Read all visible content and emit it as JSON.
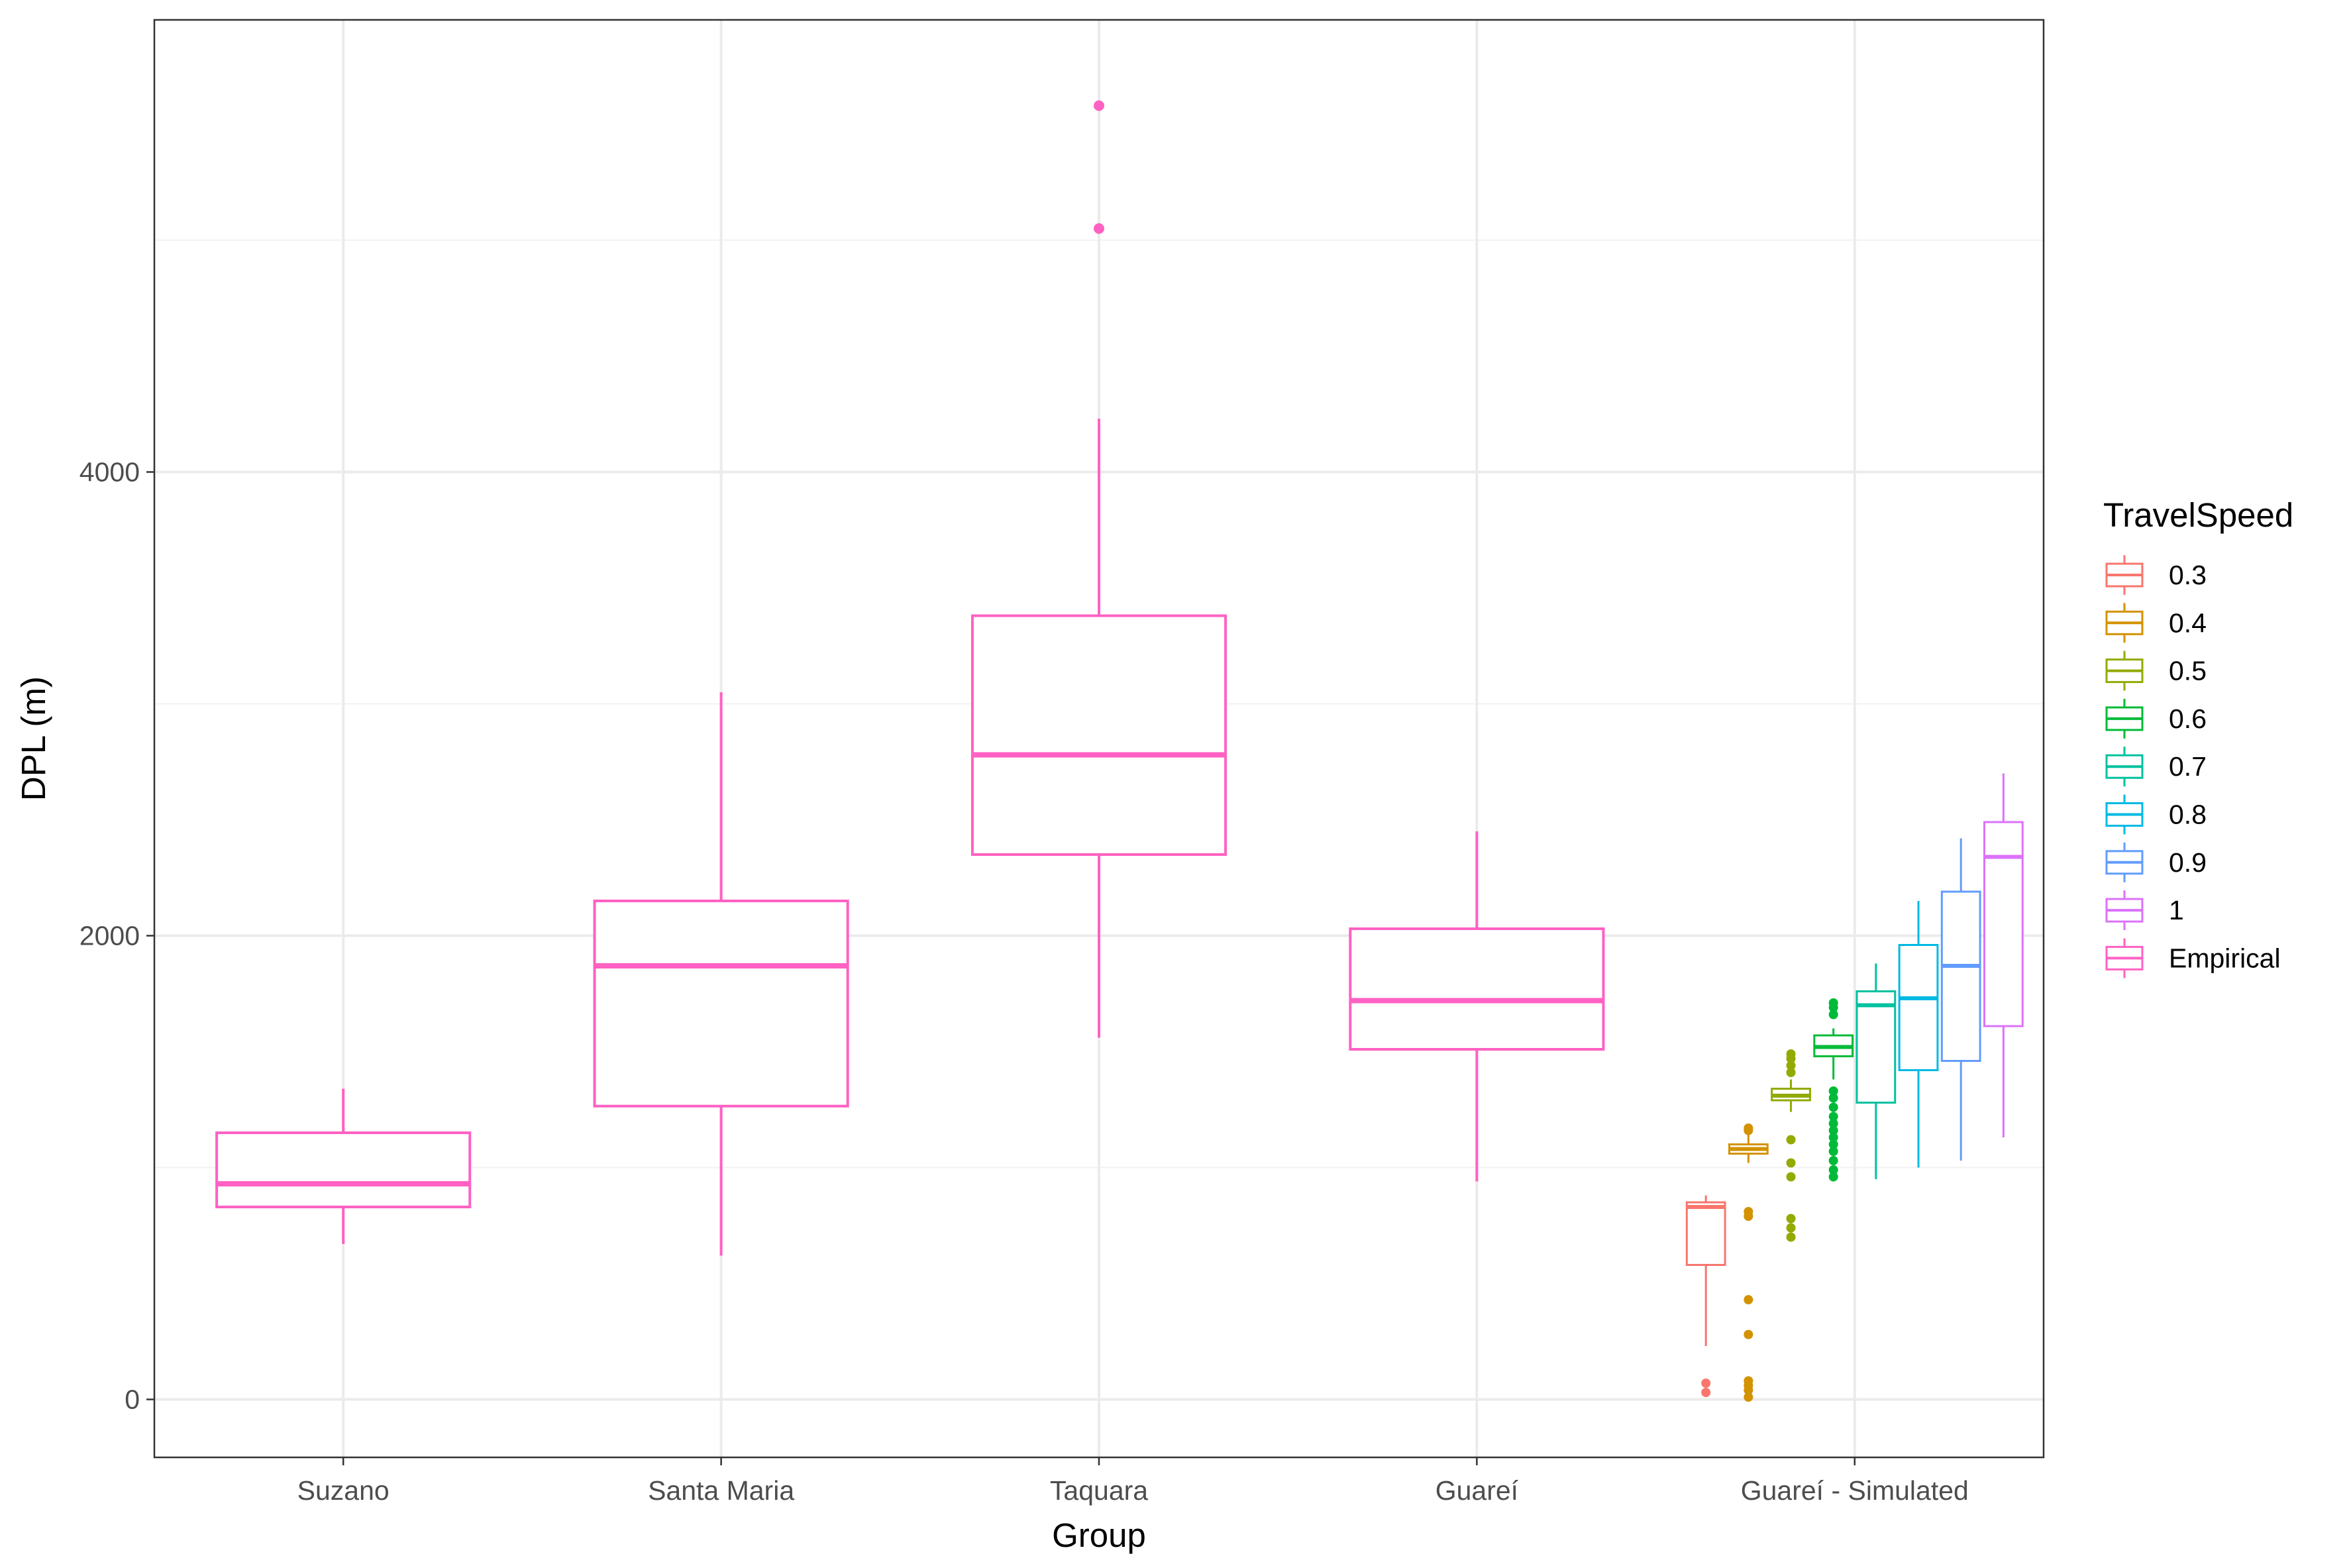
{
  "chart_data": {
    "type": "boxplot",
    "xlabel": "Group",
    "ylabel": "DPL (m)",
    "ylim": [
      -250,
      5950
    ],
    "y_major_ticks": [
      0,
      2000,
      4000
    ],
    "y_minor_gridlines": [
      1000,
      3000,
      5000
    ],
    "grid": true,
    "categories": [
      "Suzano",
      "Santa Maria",
      "Taquara",
      "Guareí",
      "Guareí - Simulated"
    ],
    "legend": {
      "title": "TravelSpeed",
      "position": "right",
      "entries": [
        {
          "label": "0.3",
          "color": "#F8766D"
        },
        {
          "label": "0.4",
          "color": "#D39200"
        },
        {
          "label": "0.5",
          "color": "#93AA00"
        },
        {
          "label": "0.6",
          "color": "#00BA38"
        },
        {
          "label": "0.7",
          "color": "#00C19F"
        },
        {
          "label": "0.8",
          "color": "#00B9E3"
        },
        {
          "label": "0.9",
          "color": "#619CFF"
        },
        {
          "label": "1",
          "color": "#DB72FB"
        },
        {
          "label": "Empirical",
          "color": "#FF61C3"
        }
      ]
    },
    "boxes": [
      {
        "category": "Suzano",
        "series": "Empirical",
        "min": 670,
        "q1": 830,
        "median": 930,
        "q3": 1150,
        "max": 1340,
        "outliers": []
      },
      {
        "category": "Santa Maria",
        "series": "Empirical",
        "min": 620,
        "q1": 1265,
        "median": 1870,
        "q3": 2150,
        "max": 3050,
        "outliers": []
      },
      {
        "category": "Taquara",
        "series": "Empirical",
        "min": 1560,
        "q1": 2350,
        "median": 2780,
        "q3": 3380,
        "max": 4230,
        "outliers": [
          5050,
          5580
        ]
      },
      {
        "category": "Guareí",
        "series": "Empirical",
        "min": 940,
        "q1": 1510,
        "median": 1720,
        "q3": 2030,
        "max": 2450,
        "outliers": []
      },
      {
        "category": "Guareí - Simulated",
        "series": "0.3",
        "min": 230,
        "q1": 580,
        "median": 830,
        "q3": 850,
        "max": 880,
        "outliers": [
          30,
          70
        ]
      },
      {
        "category": "Guareí - Simulated",
        "series": "0.4",
        "min": 1020,
        "q1": 1060,
        "median": 1080,
        "q3": 1100,
        "max": 1150,
        "outliers": [
          10,
          40,
          60,
          80,
          280,
          430,
          790,
          810,
          1160,
          1170
        ]
      },
      {
        "category": "Guareí - Simulated",
        "series": "0.5",
        "min": 1240,
        "q1": 1290,
        "median": 1310,
        "q3": 1340,
        "max": 1380,
        "outliers": [
          700,
          740,
          780,
          960,
          1020,
          1120,
          1410,
          1440,
          1470,
          1490
        ]
      },
      {
        "category": "Guareí - Simulated",
        "series": "0.6",
        "min": 1380,
        "q1": 1480,
        "median": 1520,
        "q3": 1570,
        "max": 1600,
        "outliers": [
          960,
          990,
          1030,
          1070,
          1100,
          1130,
          1160,
          1190,
          1220,
          1260,
          1300,
          1330,
          1660,
          1690,
          1710
        ]
      },
      {
        "category": "Guareí - Simulated",
        "series": "0.7",
        "min": 950,
        "q1": 1280,
        "median": 1700,
        "q3": 1760,
        "max": 1880,
        "outliers": []
      },
      {
        "category": "Guareí - Simulated",
        "series": "0.8",
        "min": 1000,
        "q1": 1420,
        "median": 1730,
        "q3": 1960,
        "max": 2150,
        "outliers": []
      },
      {
        "category": "Guareí - Simulated",
        "series": "0.9",
        "min": 1030,
        "q1": 1460,
        "median": 1870,
        "q3": 2190,
        "max": 2420,
        "outliers": []
      },
      {
        "category": "Guareí - Simulated",
        "series": "1",
        "min": 1130,
        "q1": 1610,
        "median": 2340,
        "q3": 2490,
        "max": 2700,
        "outliers": []
      }
    ]
  }
}
